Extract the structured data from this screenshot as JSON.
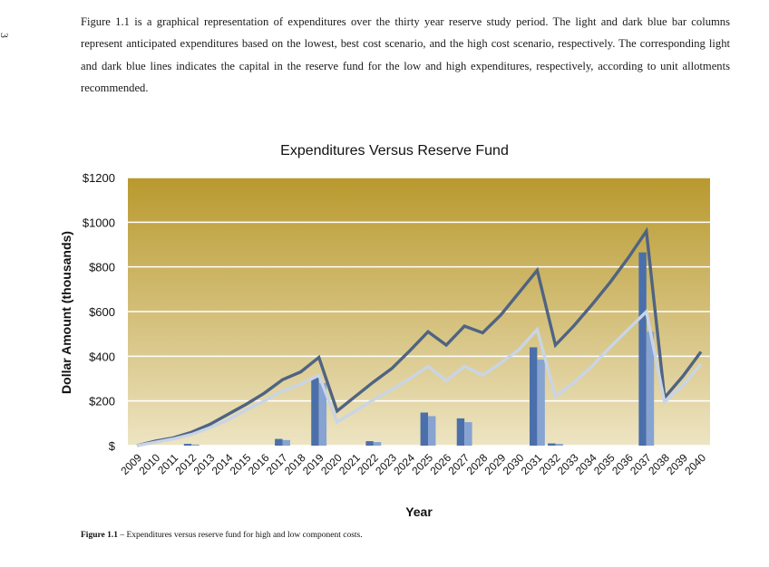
{
  "page_number": "3",
  "intro_text": "Figure 1.1 is a graphical representation of expenditures over the thirty year reserve study period.  The light and dark blue bar columns represent anticipated expenditures based on the lowest, best cost scenario, and the high cost scenario, respectively.  The corresponding light and dark blue lines indicates the capital in the reserve fund for the low and high expenditures, respectively, according to unit allotments recommended.",
  "caption": {
    "label": "Figure 1.1",
    "text": " – Expenditures versus reserve fund for high and low component costs."
  },
  "colors": {
    "plot_top": "#b9992e",
    "plot_bottom": "#ede4c2",
    "bar_high": "#4a6fab",
    "bar_low": "#87a3d2",
    "line_high": "#4f6482",
    "line_low": "#c9d5e6",
    "gridline": "#ffffff"
  },
  "chart_data": {
    "type": "bar",
    "title": "Expenditures Versus Reserve Fund",
    "xlabel": "Year",
    "ylabel": "Dollar Amount (thousands)",
    "ylim": [
      0,
      1200
    ],
    "yticks": [
      0,
      200,
      400,
      600,
      800,
      1000,
      1200
    ],
    "ytick_labels": [
      "$",
      "$200",
      "$400",
      "$600",
      "$800",
      "$1000",
      "$1200"
    ],
    "grid": true,
    "legend": "none",
    "categories": [
      "2009",
      "2010",
      "2011",
      "2012",
      "2013",
      "2014",
      "2015",
      "2016",
      "2017",
      "2018",
      "2019",
      "2020",
      "2021",
      "2022",
      "2023",
      "2024",
      "2025",
      "2026",
      "2027",
      "2028",
      "2029",
      "2030",
      "2031",
      "2032",
      "2033",
      "2034",
      "2035",
      "2036",
      "2037",
      "2038",
      "2039",
      "2040"
    ],
    "series": [
      {
        "mark": "bar",
        "values": [
          0,
          0,
          0,
          8,
          0,
          0,
          0,
          0,
          30,
          0,
          305,
          0,
          0,
          20,
          0,
          0,
          148,
          0,
          122,
          0,
          0,
          0,
          440,
          10,
          0,
          0,
          0,
          0,
          865,
          0,
          0,
          0
        ]
      },
      {
        "mark": "bar",
        "values": [
          0,
          0,
          0,
          5,
          0,
          0,
          0,
          0,
          25,
          0,
          280,
          0,
          0,
          16,
          0,
          0,
          132,
          0,
          105,
          0,
          0,
          0,
          385,
          8,
          0,
          0,
          0,
          0,
          510,
          0,
          0,
          0
        ]
      },
      {
        "mark": "line",
        "values": [
          0,
          20,
          35,
          60,
          95,
          140,
          185,
          235,
          295,
          330,
          395,
          155,
          220,
          285,
          345,
          425,
          510,
          450,
          535,
          505,
          585,
          685,
          785,
          450,
          535,
          630,
          730,
          840,
          960,
          215,
          310,
          420
        ]
      },
      {
        "mark": "line",
        "values": [
          0,
          15,
          30,
          50,
          80,
          115,
          160,
          200,
          245,
          275,
          315,
          105,
          155,
          205,
          250,
          300,
          355,
          290,
          355,
          315,
          370,
          430,
          520,
          220,
          280,
          355,
          440,
          520,
          600,
          195,
          270,
          365
        ]
      }
    ]
  }
}
